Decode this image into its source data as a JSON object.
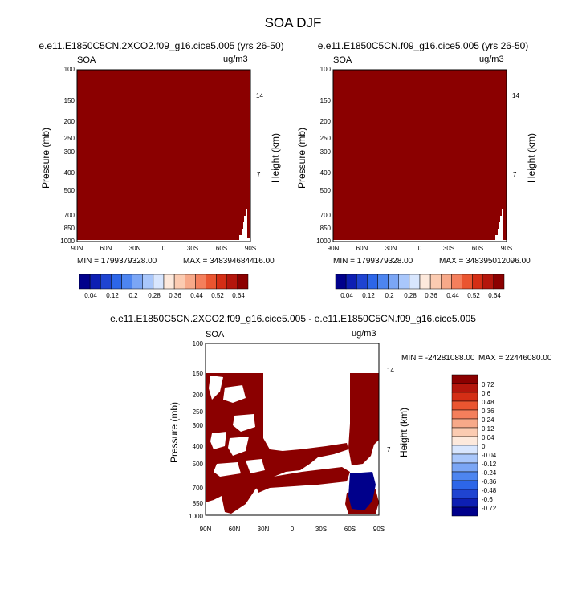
{
  "figure_title": "SOA DJF",
  "chart_data": [
    {
      "type": "heatmap",
      "title": "e.e11.E1850C5CN.2XCO2.f09_g16.cice5.005 (yrs 26-50)",
      "left_label": "SOA",
      "right_label": "ug/m3",
      "ylabel": "Pressure (mb)",
      "ylabel_right": "Height (km)",
      "x_ticks": [
        "90N",
        "60N",
        "30N",
        "0",
        "30S",
        "60S",
        "90S"
      ],
      "y_ticks": [
        100,
        150,
        200,
        250,
        300,
        400,
        500,
        700,
        850,
        1000
      ],
      "y_right_ticks": [
        14,
        7
      ],
      "ylim": [
        1000,
        100
      ],
      "y_scale": "log",
      "min_label": "MIN = 1799379328.00",
      "max_label": "MAX = 348394684416.00",
      "fill": "all values above 0.64 (saturated dark red)",
      "colorbar_labels": [
        "0.04",
        "0.12",
        "0.2",
        "0.28",
        "0.36",
        "0.44",
        "0.52",
        "0.64"
      ]
    },
    {
      "type": "heatmap",
      "title": "e.e11.E1850C5CN.f09_g16.cice5.005 (yrs 26-50)",
      "left_label": "SOA",
      "right_label": "ug/m3",
      "ylabel": "Pressure (mb)",
      "ylabel_right": "Height (km)",
      "x_ticks": [
        "90N",
        "60N",
        "30N",
        "0",
        "30S",
        "60S",
        "90S"
      ],
      "y_ticks": [
        100,
        150,
        200,
        250,
        300,
        400,
        500,
        700,
        850,
        1000
      ],
      "y_right_ticks": [
        14,
        7
      ],
      "ylim": [
        1000,
        100
      ],
      "y_scale": "log",
      "min_label": "MIN = 1799379328.00",
      "max_label": "MAX = 348395012096.00",
      "fill": "all values above 0.64 (saturated dark red)",
      "colorbar_labels": [
        "0.04",
        "0.12",
        "0.2",
        "0.28",
        "0.36",
        "0.44",
        "0.52",
        "0.64"
      ]
    },
    {
      "type": "heatmap",
      "title": "e.e11.E1850C5CN.2XCO2.f09_g16.cice5.005 - e.e11.E1850C5CN.f09_g16.cice5.005",
      "left_label": "SOA",
      "right_label": "ug/m3",
      "ylabel": "Pressure (mb)",
      "ylabel_right": "Height (km)",
      "x_ticks": [
        "90N",
        "60N",
        "30N",
        "0",
        "30S",
        "60S",
        "90S"
      ],
      "y_ticks": [
        100,
        150,
        200,
        250,
        300,
        400,
        500,
        700,
        850,
        1000
      ],
      "y_right_ticks": [
        14,
        7
      ],
      "ylim": [
        1000,
        100
      ],
      "y_scale": "log",
      "min_label": "MIN = -24281088.00",
      "max_label": "MAX = 22446080.00",
      "colorbar_labels": [
        "0.72",
        "0.6",
        "0.48",
        "0.36",
        "0.24",
        "0.12",
        "0.04",
        "0",
        "-0.04",
        "-0.12",
        "-0.24",
        "-0.36",
        "-0.48",
        "-0.6",
        "-0.72"
      ]
    }
  ],
  "colors": {
    "positive_saturated": "#8b0000",
    "negative_saturated": "#00008b",
    "text": "#000000",
    "diverging_scale": [
      "#00008b",
      "#0d1fb3",
      "#1f44d1",
      "#2d66e8",
      "#4d85f0",
      "#7ba6f5",
      "#a9c7fb",
      "#d8e6fe",
      "#fde9dc",
      "#fbcbb1",
      "#f7a989",
      "#f47f5c",
      "#ea5530",
      "#d42e15",
      "#b4160c",
      "#8b0000"
    ]
  }
}
